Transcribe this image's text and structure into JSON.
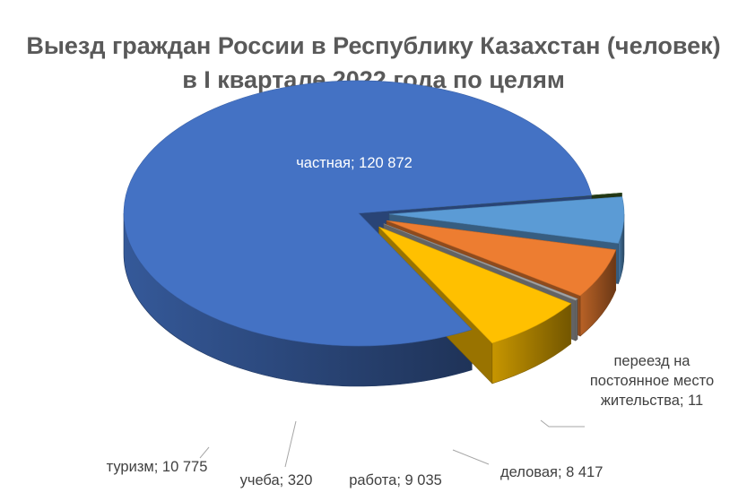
{
  "title_lines": [
    "Выезд граждан России в Республику Казахстан (человек)",
    "в I квартале 2022 года по целям"
  ],
  "chart_data": {
    "type": "pie",
    "title": "Выезд граждан России в Республику Казахстан (человек) в I квартале 2022 года по целям",
    "style": "3d-exploded",
    "categories": [
      "частная",
      "переезд на постоянное место жительства",
      "деловая",
      "работа",
      "учеба",
      "туризм"
    ],
    "values": [
      120872,
      11,
      8417,
      9035,
      320,
      10775
    ],
    "colors": [
      "#4472C4",
      "#375623",
      "#5B9BD5",
      "#ED7D31",
      "#A5A5A5",
      "#FFC000"
    ],
    "data_labels": [
      "частная; 120 872",
      "переезд на постоянное место жительства; 11",
      "деловая; 8 417",
      "работа; 9 035",
      "учеба; 320",
      "туризм; 10 775"
    ],
    "label_lines": [
      [
        "частная; 120 872"
      ],
      [
        "переезд на",
        "постоянное место",
        "жительства; 11"
      ],
      [
        "деловая; 8 417"
      ],
      [
        "работа; 9 035"
      ],
      [
        "учеба; 320"
      ],
      [
        "туризм; 10 775"
      ]
    ]
  }
}
